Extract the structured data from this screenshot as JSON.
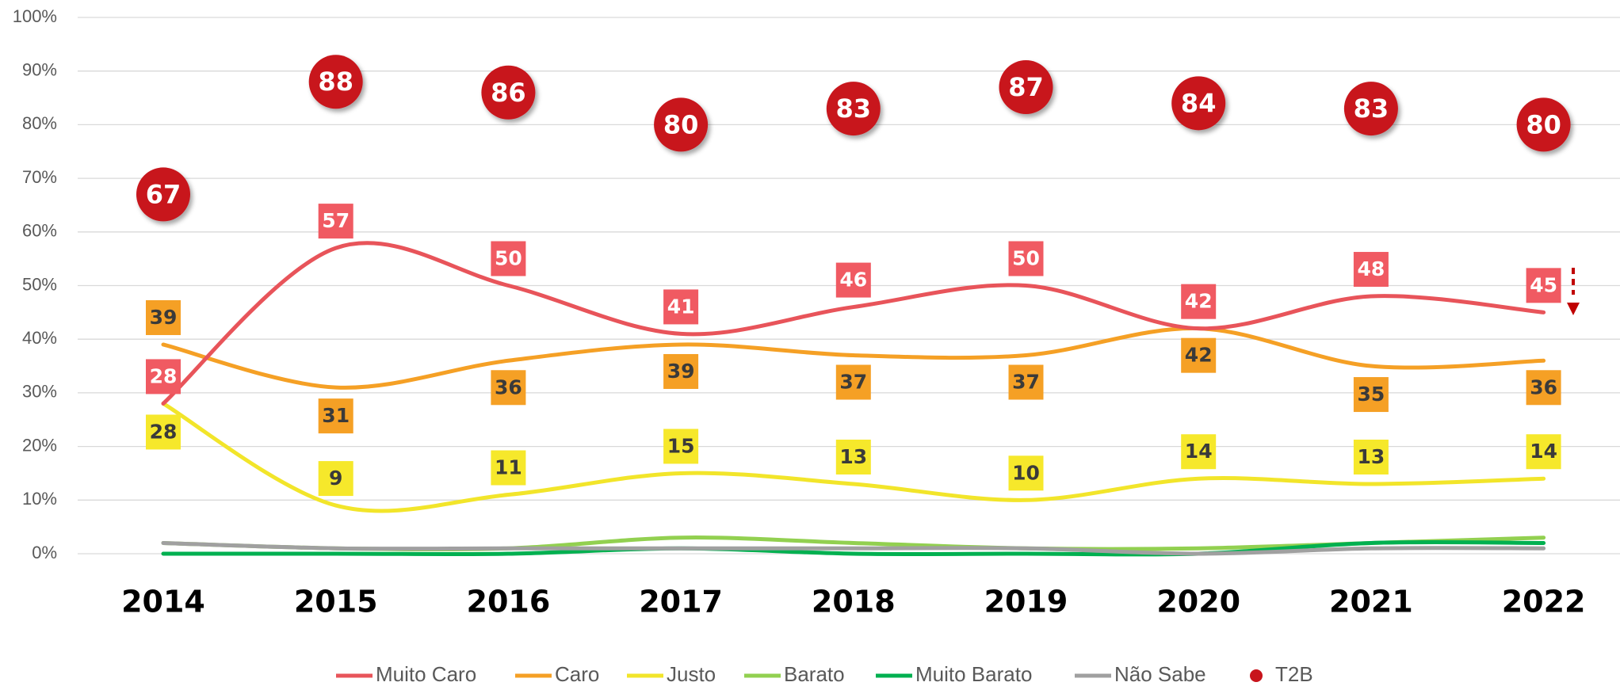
{
  "chart_data": {
    "type": "line",
    "categories": [
      "2014",
      "2015",
      "2016",
      "2017",
      "2018",
      "2019",
      "2020",
      "2021",
      "2022"
    ],
    "ylim": [
      0,
      100
    ],
    "yticks": [
      {
        "value": 0,
        "label": "0%"
      },
      {
        "value": 10,
        "label": "10%"
      },
      {
        "value": 20,
        "label": "20%"
      },
      {
        "value": 30,
        "label": "30%"
      },
      {
        "value": 40,
        "label": "40%"
      },
      {
        "value": 50,
        "label": "50%"
      },
      {
        "value": 60,
        "label": "60%"
      },
      {
        "value": 70,
        "label": "70%"
      },
      {
        "value": 80,
        "label": "80%"
      },
      {
        "value": 90,
        "label": "90%"
      },
      {
        "value": 100,
        "label": "100%"
      }
    ],
    "grid": true,
    "legend": "bottom",
    "series": [
      {
        "name": "Muito Caro",
        "color": "#e8545a",
        "data_labels": true,
        "values": [
          28,
          57,
          50,
          41,
          46,
          50,
          42,
          48,
          45
        ]
      },
      {
        "name": "Caro",
        "color": "#f5a025",
        "data_labels": true,
        "values": [
          39,
          31,
          36,
          39,
          37,
          37,
          42,
          35,
          36
        ]
      },
      {
        "name": "Justo",
        "color": "#f2e52a",
        "data_labels": true,
        "values": [
          28,
          9,
          11,
          15,
          13,
          10,
          14,
          13,
          14
        ]
      },
      {
        "name": "Barato",
        "color": "#92d050",
        "data_labels": false,
        "values": [
          2,
          1,
          1,
          3,
          2,
          1,
          1,
          2,
          3
        ]
      },
      {
        "name": "Muito Barato",
        "color": "#00b050",
        "data_labels": false,
        "values": [
          0,
          0,
          0,
          1,
          0,
          0,
          0,
          2,
          2
        ]
      },
      {
        "name": "Não Sabe",
        "color": "#a0a0a0",
        "data_labels": false,
        "values": [
          2,
          1,
          1,
          1,
          1,
          1,
          0,
          1,
          1
        ]
      },
      {
        "name": "T2B",
        "color": "#c8141c",
        "mode": "markers",
        "data_labels": true,
        "values": [
          67,
          88,
          86,
          80,
          83,
          87,
          84,
          83,
          80
        ]
      }
    ]
  }
}
